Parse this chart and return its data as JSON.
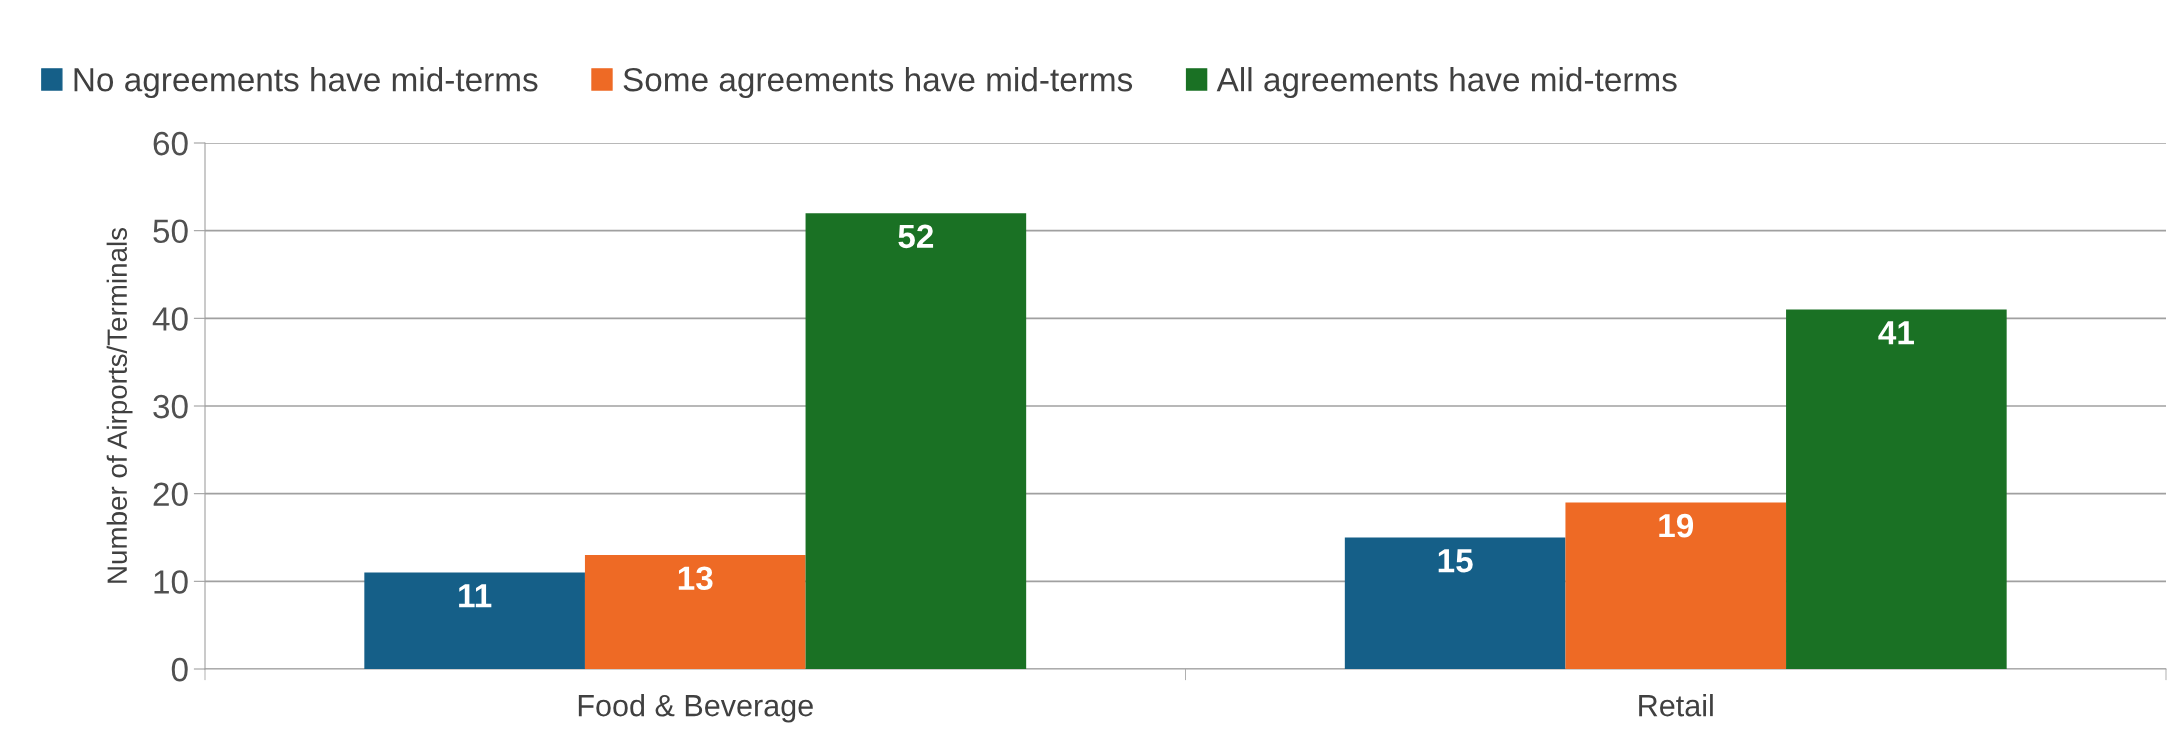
{
  "chart_data": {
    "type": "bar",
    "ylabel": "Number of Airports/Terminals",
    "categories": [
      "Food & Beverage",
      "Retail"
    ],
    "series": [
      {
        "name": "No agreements have mid-terms",
        "color": "#155f88",
        "values": [
          11,
          15
        ]
      },
      {
        "name": "Some agreements have mid-terms",
        "color": "#ee6a25",
        "values": [
          13,
          19
        ]
      },
      {
        "name": "All agreements have mid-terms",
        "color": "#1a7124",
        "values": [
          52,
          41
        ]
      }
    ],
    "ylim": [
      0,
      60
    ],
    "yticks": [
      0,
      10,
      20,
      30,
      40,
      50,
      60
    ],
    "grid": "y",
    "legend": "top",
    "data_labels": true
  }
}
